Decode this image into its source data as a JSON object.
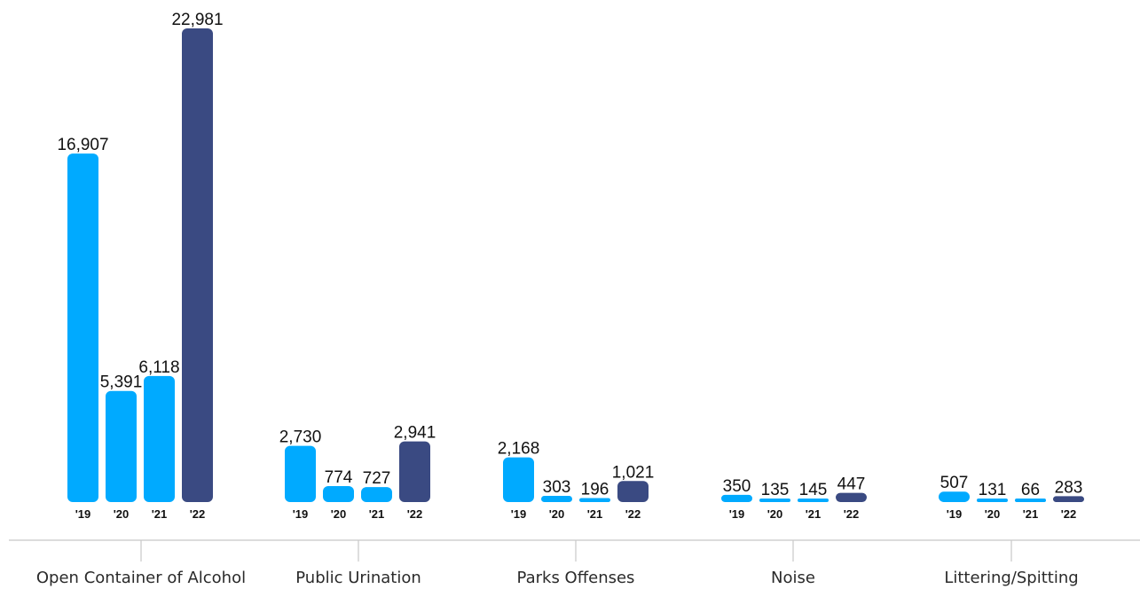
{
  "chart_data": {
    "type": "bar",
    "categories": [
      "Open Container of Alcohol",
      "Public Urination",
      "Parks Offenses",
      "Noise",
      "Littering/Spitting"
    ],
    "years": [
      "'19",
      "'20",
      "'21",
      "'22"
    ],
    "values": [
      [
        16907,
        5391,
        6118,
        22981
      ],
      [
        2730,
        774,
        727,
        2941
      ],
      [
        2168,
        303,
        196,
        1021
      ],
      [
        350,
        135,
        145,
        447
      ],
      [
        507,
        131,
        66,
        283
      ]
    ],
    "value_labels": [
      [
        "16,907",
        "5,391",
        "6,118",
        "22,981"
      ],
      [
        "2,730",
        "774",
        "727",
        "2,941"
      ],
      [
        "2,168",
        "303",
        "196",
        "1,021"
      ],
      [
        "350",
        "135",
        "145",
        "447"
      ],
      [
        "507",
        "131",
        "66",
        "283"
      ]
    ],
    "ylim": [
      0,
      22981
    ],
    "grid": false,
    "colors": {
      "prior_years": "#00aaff",
      "latest_year": "#3a4a82"
    }
  }
}
